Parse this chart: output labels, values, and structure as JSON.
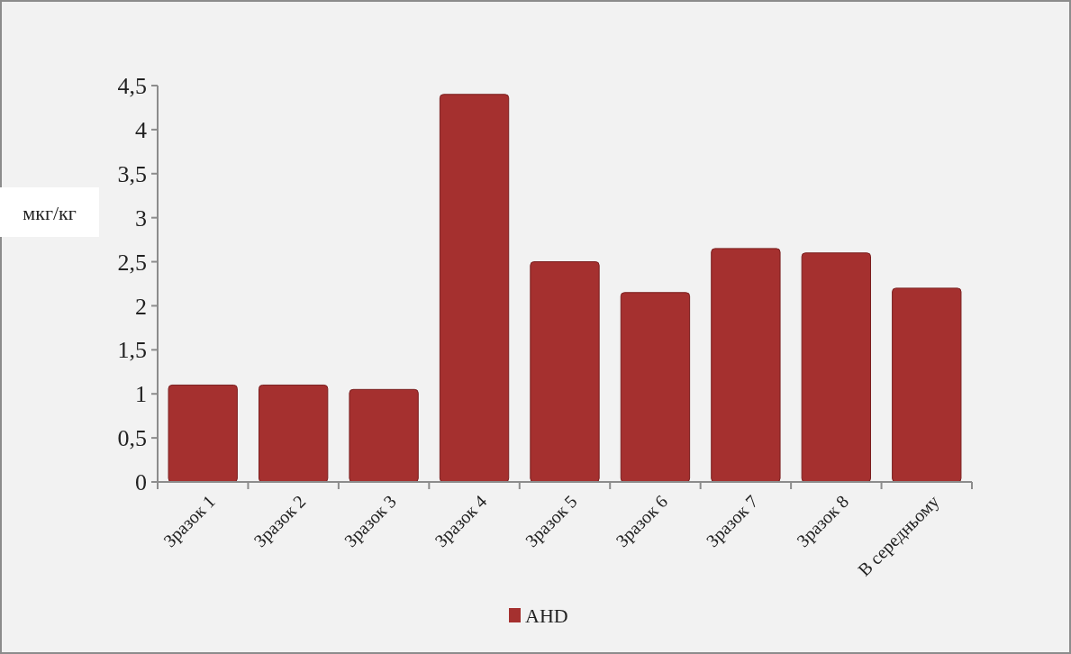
{
  "chart_data": {
    "type": "bar",
    "ylabel": "мкг/кг",
    "categories": [
      "Зразок 1",
      "Зразок 2",
      "Зразок 3",
      "Зразок 4",
      "Зразок 5",
      "Зразок 6",
      "Зразок 7",
      "Зразок 8",
      "В середньому"
    ],
    "series": [
      {
        "name": "AHD",
        "color": "#a5302f",
        "values": [
          1.1,
          1.1,
          1.05,
          4.4,
          2.5,
          2.15,
          2.65,
          2.6,
          2.2
        ]
      }
    ],
    "ylim": [
      0,
      4.5
    ],
    "yticks": [
      0,
      {
        "value": 0.5,
        "label": "0,5"
      },
      1,
      {
        "value": 1.5,
        "label": "1,5"
      },
      2,
      {
        "value": 2.5,
        "label": "2,5"
      },
      3,
      {
        "value": 3.5,
        "label": "3,5"
      },
      4,
      {
        "value": 4.5,
        "label": "4,5"
      }
    ],
    "legend": "bottom"
  }
}
